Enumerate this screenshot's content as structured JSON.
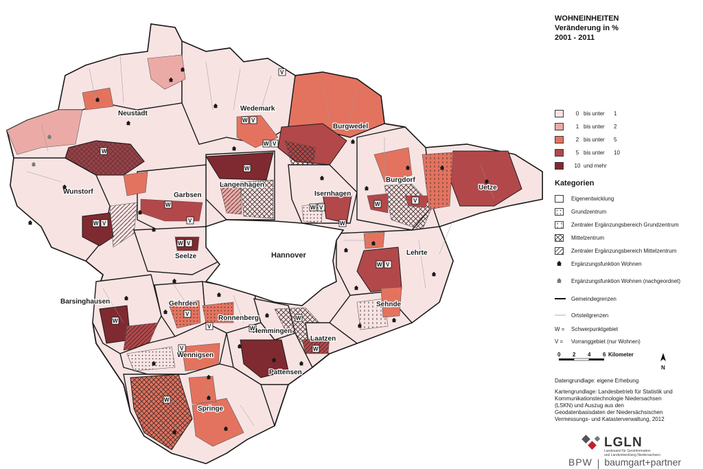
{
  "title": {
    "line1": "WOHNEINHEITEN",
    "line2": "Veränderung in %",
    "line3": "2001 - 2011"
  },
  "classes": [
    {
      "from": "0",
      "sep": "bis unter",
      "to": "1",
      "color": "#f8e3e3"
    },
    {
      "from": "1",
      "sep": "bis unter",
      "to": "2",
      "color": "#ecaaa6"
    },
    {
      "from": "2",
      "sep": "bis unter",
      "to": "5",
      "color": "#e3735f"
    },
    {
      "from": "5",
      "sep": "bis unter",
      "to": "10",
      "color": "#b2484a"
    },
    {
      "from": "10",
      "sep": "und mehr",
      "to": "",
      "color": "#7f2a30"
    }
  ],
  "categories_heading": "Kategorien",
  "categories": [
    {
      "label": "Eigenentwicklung",
      "pattern": "plain"
    },
    {
      "label": "Grundzentrum",
      "pattern": "dots"
    },
    {
      "label": "Zentraler Ergänzungsbereich Grundzentrum",
      "pattern": "vertical-dashes"
    },
    {
      "label": "Mittelzentrum",
      "pattern": "crosshatch"
    },
    {
      "label": "Zentraler Ergänzungsbereich Mittelzentrum",
      "pattern": "diagonal"
    },
    {
      "label": "Ergänzungsfunktion Wohnen",
      "pattern": "house-black"
    },
    {
      "label": "Ergänzungsfunktion Wohnen (nachgeordnet)",
      "pattern": "house-grey"
    },
    {
      "label": "Gemeindegrenzen",
      "pattern": "line-thick"
    },
    {
      "label": "Ortsteilgrenzen",
      "pattern": "line-thin"
    },
    {
      "label": "Schwerpunktgebiet",
      "pattern": "letter",
      "letter": "W ="
    },
    {
      "label": "Vorranggebiet (nur Wohnen)",
      "pattern": "letter",
      "letter": "V ="
    }
  ],
  "scale": {
    "ticks": [
      "0",
      "2",
      "4",
      "6"
    ],
    "unit": "Kilometer",
    "north": "N"
  },
  "sources": {
    "data_basis": "Datengrundlage: eigene Erhebung",
    "map_basis": [
      "Kartengrundlage: Landesbetrieb für Statistik und",
      "Kommunikationstechnologie Niedersachsen",
      "(LSKN) und Auszug aus den",
      "Geodatenbasisdaten der Niedersächsischen",
      "Vermessungs- und Katasterverwaltung, 2012"
    ]
  },
  "logos": {
    "lgln": "LGLN",
    "lgln_sub1": "Landesamt für Geoinformation",
    "lgln_sub2": "und Landentwicklung Niedersachsen",
    "bpw_left": "BPW",
    "bpw_right": "baumgart+partner"
  },
  "places": {
    "hannover": "Hannover",
    "neustadt": "Neustadt",
    "wedemark": "Wedemark",
    "burgwedel": "Burgwedel",
    "burgdorf": "Burgdorf",
    "uetze": "Uetze",
    "langenhagen": "Langenhagen",
    "isernhagen": "Isernhagen",
    "garbsen": "Garbsen",
    "wunstorf": "Wunstorf",
    "seelze": "Seelze",
    "lehrte": "Lehrte",
    "sehnde": "Sehnde",
    "barsinghausen": "Barsinghausen",
    "gehrden": "Gehrden",
    "ronnenberg": "Ronnenberg",
    "hemmingen": "Hemmingen",
    "laatzen": "Laatzen",
    "wennigsen": "Wennigsen",
    "pattensen": "Pattensen",
    "springe": "Springe"
  },
  "markers": {
    "w": "W",
    "v": "V"
  }
}
